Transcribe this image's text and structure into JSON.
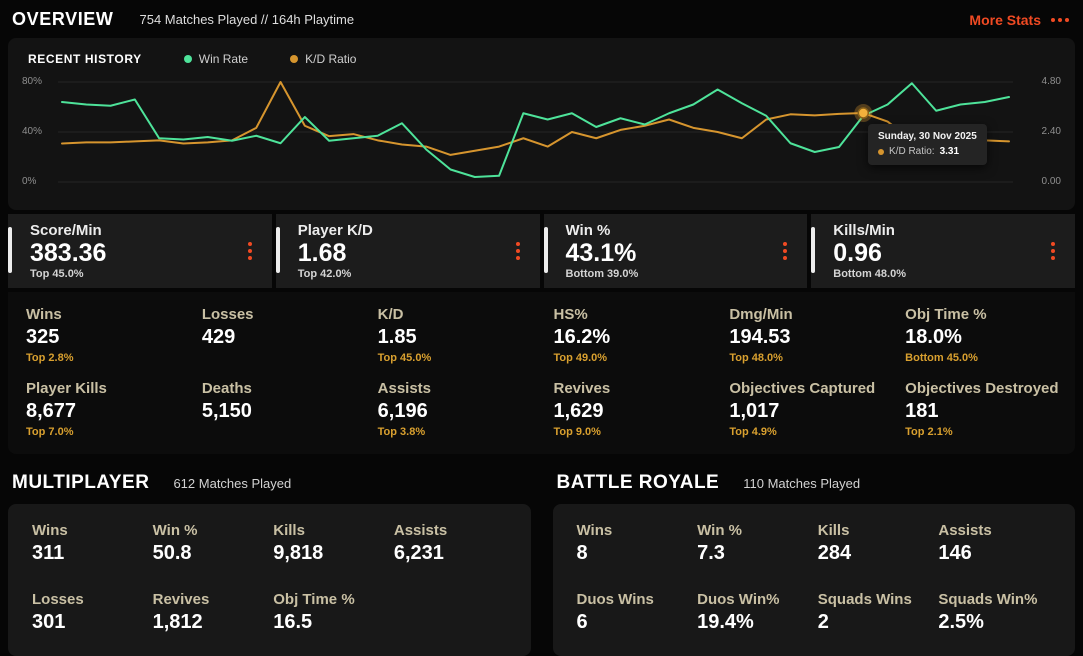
{
  "colors": {
    "accent": "#f04a23",
    "gold": "#d9a02f",
    "tan": "#c9c0a4",
    "green": "#4ee39a",
    "orange": "#d6952e",
    "panel": "#131313"
  },
  "header": {
    "title": "OVERVIEW",
    "subtitle": "754 Matches Played // 164h Playtime",
    "more_stats_label": "More Stats"
  },
  "recent_history": {
    "title": "RECENT HISTORY",
    "legend": [
      {
        "label": "Win Rate",
        "color": "#4ee39a"
      },
      {
        "label": "K/D Ratio",
        "color": "#e0a62b"
      }
    ],
    "tooltip": {
      "date": "Sunday, 30 Nov 2025",
      "label": "K/D Ratio:",
      "value": "3.31"
    },
    "chart_data": {
      "type": "line",
      "x": "recent matches (oldest to newest)",
      "series": [
        {
          "name": "Win Rate",
          "axis": "left",
          "color": "#4ee39a",
          "values": [
            64,
            62,
            61,
            66,
            35,
            34,
            36,
            33,
            37,
            31,
            52,
            33,
            35,
            37,
            47,
            26,
            10,
            4,
            5,
            55,
            50,
            55,
            44,
            51,
            46,
            55,
            62,
            74,
            63,
            53,
            31,
            24,
            28,
            53,
            62,
            79,
            57,
            62,
            64,
            68
          ]
        },
        {
          "name": "K/D Ratio",
          "axis": "right",
          "color": "#d6952e",
          "values": [
            1.85,
            1.9,
            1.9,
            1.95,
            2.0,
            1.85,
            1.9,
            2.0,
            2.6,
            4.8,
            2.7,
            2.2,
            2.3,
            2.0,
            1.8,
            1.7,
            1.3,
            1.5,
            1.7,
            2.1,
            1.7,
            2.4,
            2.1,
            2.5,
            2.7,
            3.0,
            2.6,
            2.4,
            2.1,
            3.0,
            3.25,
            3.2,
            3.27,
            3.31,
            2.9,
            2.0,
            2.1,
            2.1,
            2.0,
            1.95
          ]
        }
      ],
      "y_left": {
        "min": 0,
        "max": 80,
        "ticks": [
          "80%",
          "40%",
          "0%"
        ]
      },
      "y_right": {
        "min": 0,
        "max": 4.8,
        "ticks": [
          "4.80",
          "2.40",
          "0.00"
        ]
      },
      "grid": true,
      "legend_position": "top",
      "highlight": {
        "series": "K/D Ratio",
        "index": 33,
        "value": 3.31,
        "date": "Sunday, 30 Nov 2025"
      }
    }
  },
  "highlight_tiles": [
    {
      "label": "Score/Min",
      "value": "383.36",
      "sub": "Top 45.0%"
    },
    {
      "label": "Player K/D",
      "value": "1.68",
      "sub": "Top 42.0%"
    },
    {
      "label": "Win %",
      "value": "43.1%",
      "sub": "Bottom 39.0%"
    },
    {
      "label": "Kills/Min",
      "value": "0.96",
      "sub": "Bottom 48.0%"
    }
  ],
  "stats_grid": {
    "rows": [
      [
        {
          "label": "Wins",
          "value": "325",
          "sub": "Top 2.8%"
        },
        {
          "label": "Losses",
          "value": "429",
          "sub": ""
        },
        {
          "label": "K/D",
          "value": "1.85",
          "sub": "Top 45.0%"
        },
        {
          "label": "HS%",
          "value": "16.2%",
          "sub": "Top 49.0%"
        },
        {
          "label": "Dmg/Min",
          "value": "194.53",
          "sub": "Top 48.0%"
        },
        {
          "label": "Obj Time %",
          "value": "18.0%",
          "sub": "Bottom 45.0%"
        }
      ],
      [
        {
          "label": "Player Kills",
          "value": "8,677",
          "sub": "Top 7.0%"
        },
        {
          "label": "Deaths",
          "value": "5,150",
          "sub": ""
        },
        {
          "label": "Assists",
          "value": "6,196",
          "sub": "Top 3.8%"
        },
        {
          "label": "Revives",
          "value": "1,629",
          "sub": "Top 9.0%"
        },
        {
          "label": "Objectives Captured",
          "value": "1,017",
          "sub": "Top 4.9%"
        },
        {
          "label": "Objectives Destroyed",
          "value": "181",
          "sub": "Top 2.1%"
        }
      ]
    ]
  },
  "sections": [
    {
      "title": "MULTIPLAYER",
      "subtitle": "612 Matches Played",
      "stats": [
        {
          "label": "Wins",
          "value": "311"
        },
        {
          "label": "Win %",
          "value": "50.8"
        },
        {
          "label": "Kills",
          "value": "9,818"
        },
        {
          "label": "Assists",
          "value": "6,231"
        },
        {
          "label": "Losses",
          "value": "301"
        },
        {
          "label": "Revives",
          "value": "1,812"
        },
        {
          "label": "Obj Time %",
          "value": "16.5"
        },
        {
          "label": "",
          "value": ""
        }
      ]
    },
    {
      "title": "BATTLE ROYALE",
      "subtitle": "110 Matches Played",
      "stats": [
        {
          "label": "Wins",
          "value": "8"
        },
        {
          "label": "Win %",
          "value": "7.3"
        },
        {
          "label": "Kills",
          "value": "284"
        },
        {
          "label": "Assists",
          "value": "146"
        },
        {
          "label": "Duos Wins",
          "value": "6"
        },
        {
          "label": "Duos Win%",
          "value": "19.4%"
        },
        {
          "label": "Squads Wins",
          "value": "2"
        },
        {
          "label": "Squads Win%",
          "value": "2.5%"
        }
      ]
    }
  ]
}
